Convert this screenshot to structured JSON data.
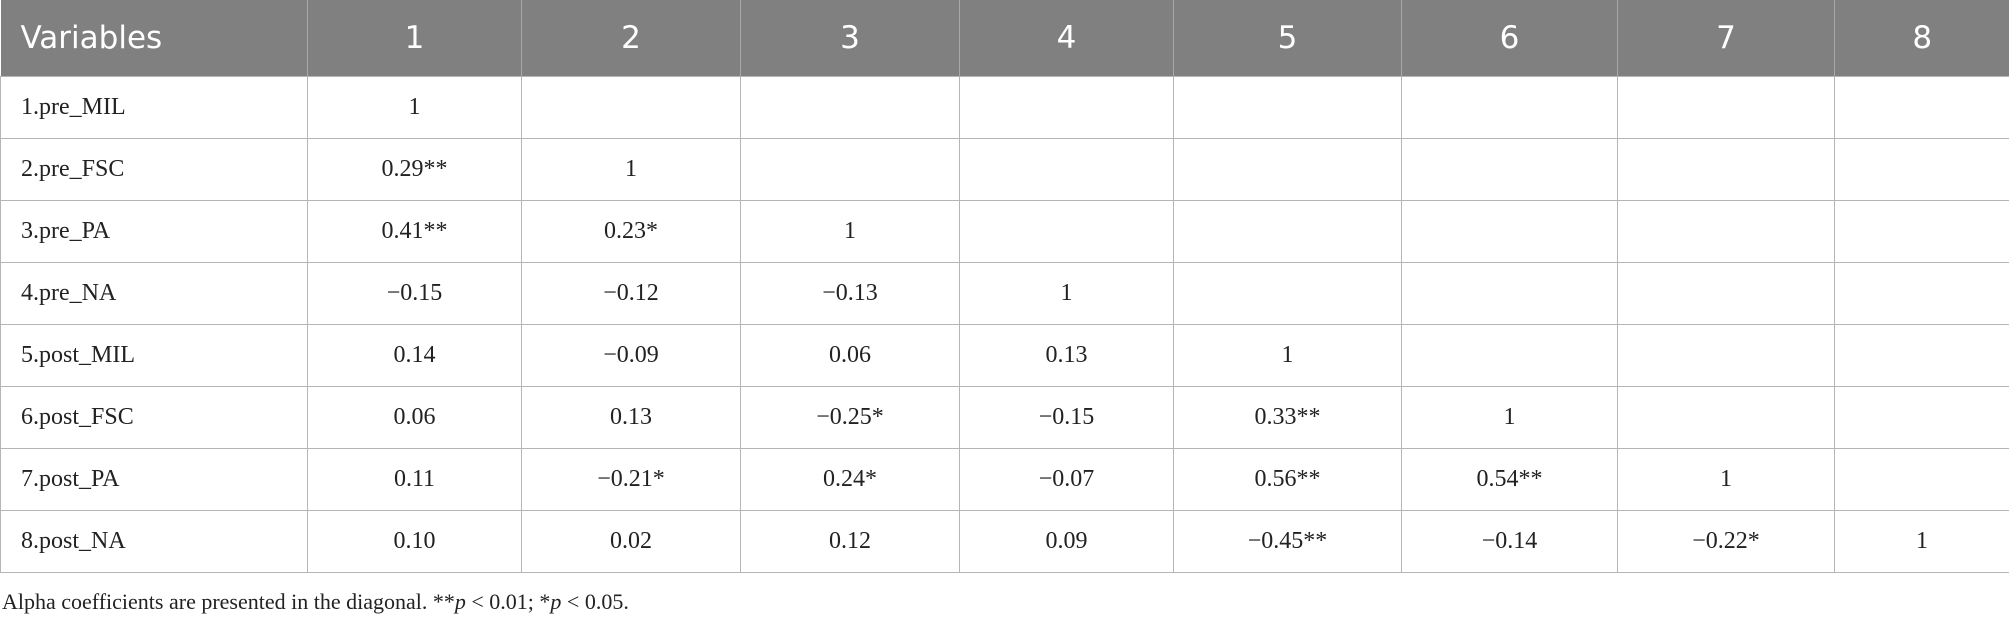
{
  "table": {
    "header": [
      "Variables",
      "1",
      "2",
      "3",
      "4",
      "5",
      "6",
      "7",
      "8"
    ],
    "rows": [
      [
        "1.pre_MIL",
        "1"
      ],
      [
        "2.pre_FSC",
        "0.29**",
        "1"
      ],
      [
        "3.pre_PA",
        "0.41**",
        "0.23*",
        "1"
      ],
      [
        "4.pre_NA",
        "−0.15",
        "−0.12",
        "−0.13",
        "1"
      ],
      [
        "5.post_MIL",
        "0.14",
        "−0.09",
        "0.06",
        "0.13",
        "1"
      ],
      [
        "6.post_FSC",
        "0.06",
        "0.13",
        "−0.25*",
        "−0.15",
        "0.33**",
        "1"
      ],
      [
        "7.post_PA",
        "0.11",
        "−0.21*",
        "0.24*",
        "−0.07",
        "0.56**",
        "0.54**",
        "1"
      ],
      [
        "8.post_NA",
        "0.10",
        "0.02",
        "0.12",
        "0.09",
        "−0.45**",
        "−0.14",
        "−0.22*",
        "1"
      ]
    ]
  },
  "footnote": [
    "Alpha coefficients are presented in the diagonal. **",
    "p",
    " < 0.01; *",
    "p",
    " < 0.05."
  ]
}
